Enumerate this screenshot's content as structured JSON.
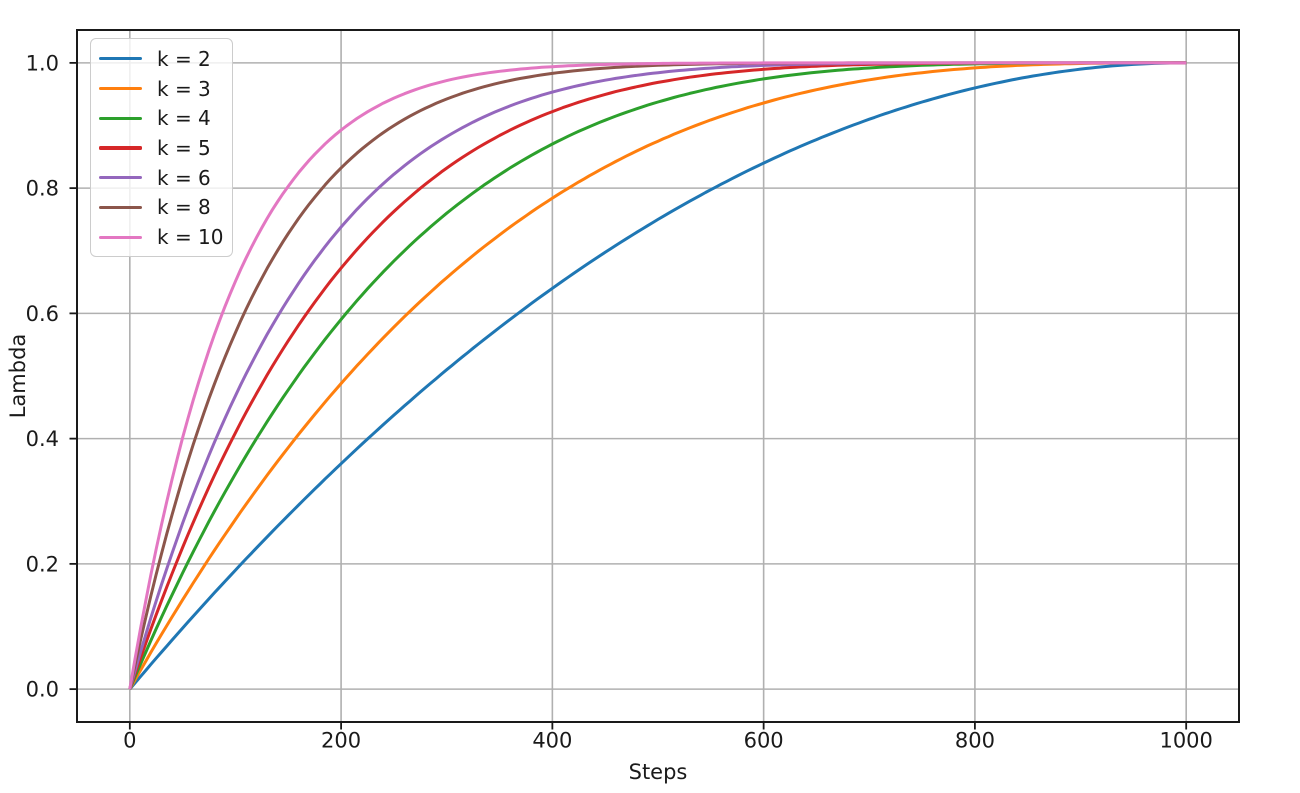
{
  "chart_data": {
    "type": "line",
    "title": "",
    "xlabel": "Steps",
    "ylabel": "Lambda",
    "xlim": [
      -50,
      1050
    ],
    "ylim": [
      -0.0525,
      1.0525
    ],
    "xticks": [
      0,
      200,
      400,
      600,
      800,
      1000
    ],
    "xtick_labels": [
      "0",
      "200",
      "400",
      "600",
      "800",
      "1000"
    ],
    "yticks": [
      0.0,
      0.2,
      0.4,
      0.6,
      0.8,
      1.0
    ],
    "ytick_labels": [
      "0.0",
      "0.2",
      "0.4",
      "0.6",
      "0.8",
      "1.0"
    ],
    "grid": true,
    "grid_color": "#b0b0b0",
    "axis_color": "#1a1a1a",
    "legend_position": "upper left",
    "legend_edge_color": "#cccccc",
    "generator": {
      "formula": "lambda = 1 - (1 - step/1000)^k",
      "x_start": 0,
      "x_end": 1000
    },
    "x_points": [
      0,
      100,
      200,
      300,
      400,
      500,
      600,
      700,
      800,
      900,
      1000
    ],
    "series": [
      {
        "name": "k = 2",
        "k": 2,
        "color": "#1f77b4",
        "values": [
          0,
          0.19,
          0.36,
          0.51,
          0.64,
          0.75,
          0.84,
          0.91,
          0.96,
          0.99,
          1.0
        ]
      },
      {
        "name": "k = 3",
        "k": 3,
        "color": "#ff7f0e",
        "values": [
          0,
          0.271,
          0.488,
          0.657,
          0.784,
          0.875,
          0.936,
          0.973,
          0.992,
          0.999,
          1.0
        ]
      },
      {
        "name": "k = 4",
        "k": 4,
        "color": "#2ca02c",
        "values": [
          0,
          0.3439,
          0.5904,
          0.7599,
          0.8704,
          0.9375,
          0.9744,
          0.9919,
          0.9984,
          0.9999,
          1.0
        ]
      },
      {
        "name": "k = 5",
        "k": 5,
        "color": "#d62728",
        "values": [
          0,
          0.4095,
          0.6723,
          0.8319,
          0.9222,
          0.9688,
          0.9898,
          0.9976,
          0.9997,
          1.0,
          1.0
        ]
      },
      {
        "name": "k = 6",
        "k": 6,
        "color": "#9467bd",
        "values": [
          0,
          0.4686,
          0.7379,
          0.8824,
          0.9533,
          0.9844,
          0.9959,
          0.9993,
          0.9999,
          1.0,
          1.0
        ]
      },
      {
        "name": "k = 8",
        "k": 8,
        "color": "#8c564b",
        "values": [
          0,
          0.5695,
          0.8322,
          0.9424,
          0.9832,
          0.9961,
          0.9993,
          0.9999,
          1.0,
          1.0,
          1.0
        ]
      },
      {
        "name": "k = 10",
        "k": 10,
        "color": "#e377c2",
        "values": [
          0,
          0.6513,
          0.8926,
          0.9718,
          0.994,
          0.999,
          0.9999,
          1.0,
          1.0,
          1.0,
          1.0
        ]
      }
    ]
  }
}
